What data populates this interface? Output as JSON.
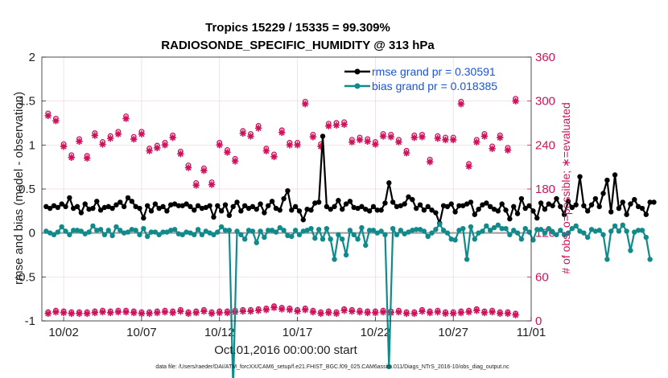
{
  "chart_data": {
    "type": "line",
    "title": "Tropics 15229 / 15335 = 99.309%",
    "subtitle": "RADIOSONDE_SPECIFIC_HUMIDITY @ 313 hPa",
    "xlabel": "Oct.01,2016 00:00:00 start",
    "ylabel": "rmse and bias (model - observation)",
    "y2label": "# of obs: o=possible; ∗=evaluated",
    "ylim": [
      -1,
      2
    ],
    "y2lim": [
      0,
      360
    ],
    "xlim": [
      0.6,
      32.0
    ],
    "yticks": [
      "-1",
      "-0.5",
      "0",
      "0.5",
      "1",
      "1.5",
      "2"
    ],
    "y2ticks": [
      "0",
      "60",
      "120",
      "180",
      "240",
      "300",
      "360"
    ],
    "xticks": [
      {
        "label": "10/02",
        "x": 2
      },
      {
        "label": "10/07",
        "x": 7
      },
      {
        "label": "10/12",
        "x": 12
      },
      {
        "label": "10/17",
        "x": 17
      },
      {
        "label": "10/22",
        "x": 22
      },
      {
        "label": "10/27",
        "x": 27
      },
      {
        "label": "11/01",
        "x": 32
      }
    ],
    "x_start": 0.875,
    "x_step": 0.25,
    "series": [
      {
        "name": "rmse grand pr = 0.30591",
        "color": "#000000",
        "axis": "left",
        "values": [
          0.3,
          0.28,
          0.31,
          0.29,
          0.33,
          0.3,
          0.4,
          0.28,
          0.3,
          0.23,
          0.33,
          0.27,
          0.28,
          0.36,
          0.26,
          0.29,
          0.3,
          0.28,
          0.32,
          0.35,
          0.3,
          0.4,
          0.36,
          0.3,
          0.28,
          0.17,
          0.31,
          0.25,
          0.33,
          0.28,
          0.3,
          0.25,
          0.32,
          0.33,
          0.31,
          0.31,
          0.33,
          0.3,
          0.26,
          0.31,
          0.28,
          0.29,
          0.31,
          0.18,
          0.31,
          0.25,
          0.32,
          0.2,
          0.3,
          0.35,
          0.25,
          0.31,
          0.28,
          0.3,
          0.27,
          0.33,
          0.23,
          0.31,
          0.36,
          0.28,
          0.26,
          0.39,
          0.48,
          0.26,
          0.3,
          0.25,
          0.15,
          0.27,
          0.26,
          0.34,
          0.35,
          1.1,
          0.3,
          0.27,
          0.3,
          0.37,
          0.27,
          0.33,
          0.36,
          0.29,
          0.28,
          0.3,
          0.27,
          0.25,
          0.3,
          0.26,
          0.26,
          0.34,
          0.57,
          0.35,
          0.3,
          0.31,
          0.33,
          0.41,
          0.38,
          0.28,
          0.32,
          0.26,
          0.3,
          0.26,
          0.23,
          0.11,
          0.31,
          0.3,
          0.33,
          0.24,
          0.31,
          0.31,
          0.33,
          0.35,
          0.21,
          0.27,
          0.32,
          0.34,
          0.3,
          0.27,
          0.25,
          0.33,
          0.26,
          0.16,
          0.3,
          0.22,
          0.39,
          0.28,
          0.31,
          0.25,
          0.17,
          0.34,
          0.27,
          0.33,
          0.31,
          0.39,
          0.3,
          0.21,
          0.36,
          0.29,
          0.32,
          0.64,
          0.31,
          0.25,
          0.32,
          0.39,
          0.3,
          0.45,
          0.6,
          0.24,
          0.66,
          0.28,
          0.35,
          0.21,
          0.33,
          0.38,
          0.3,
          0.28,
          0.21,
          0.35,
          0.35
        ]
      },
      {
        "name": "bias grand pr = 0.018385",
        "color": "#108a8a",
        "axis": "left",
        "values": [
          0.02,
          0.0,
          -0.02,
          0.01,
          0.07,
          0.02,
          -0.02,
          0.03,
          0.03,
          0.02,
          -0.01,
          0.01,
          0.08,
          0.03,
          0.04,
          -0.02,
          0.03,
          -0.03,
          0.07,
          0.03,
          0.0,
          0.01,
          0.04,
          0.03,
          -0.02,
          0.05,
          -0.04,
          0.01,
          0.01,
          -0.02,
          0.01,
          0.01,
          0.03,
          0.04,
          -0.01,
          -0.02,
          0.01,
          0.0,
          -0.02,
          0.04,
          -0.02,
          0.02,
          0.0,
          -0.02,
          0.01,
          0.07,
          0.03,
          0.03,
          -1.78,
          0.02,
          -0.02,
          -0.07,
          0.03,
          0.02,
          -0.11,
          0.02,
          -0.05,
          0.03,
          0.03,
          0.01,
          0.06,
          0.03,
          -0.03,
          -0.04,
          0.03,
          -0.02,
          0.02,
          0.03,
          0.05,
          -0.06,
          0.04,
          -0.07,
          0.05,
          -0.07,
          -0.3,
          -0.02,
          -0.07,
          -0.25,
          0.03,
          -0.02,
          -0.07,
          0.06,
          -0.14,
          0.03,
          0.03,
          0.0,
          0.02,
          -0.02,
          -1.52,
          0.05,
          -0.02,
          0.03,
          -0.01,
          0.01,
          0.03,
          0.04,
          0.04,
          0.02,
          -0.04,
          0.0,
          0.04,
          0.1,
          0.03,
          0.0,
          -0.07,
          -0.08,
          0.03,
          0.05,
          -0.3,
          0.07,
          -0.07,
          0.0,
          0.02,
          0.08,
          0.03,
          0.06,
          0.09,
          0.05,
          0.05,
          -0.02,
          0.03,
          0.0,
          -0.07,
          0.05,
          0.01,
          -0.08,
          0.04,
          0.04,
          0.0,
          0.05,
          0.01,
          -0.02,
          0.03,
          -0.02,
          0.0,
          0.05,
          0.08,
          0.02,
          0.0,
          -0.05,
          0.04,
          0.02,
          0.03,
          -0.02,
          -0.3,
          0.02,
          0.08,
          0.02,
          0.09,
          0.02,
          -0.2,
          0.01,
          0.03,
          0.03,
          -0.05,
          -0.3
        ]
      }
    ],
    "obs_counts": {
      "axis": "right",
      "color": "#d0105a",
      "x_start": 1.0,
      "x_step": 0.5,
      "possible": [
        10,
        12,
        11,
        10,
        10,
        10,
        11,
        12,
        11,
        12,
        12,
        11,
        10,
        10,
        11,
        12,
        11,
        13,
        10,
        11,
        13,
        10,
        11,
        11,
        12,
        13,
        13,
        14,
        15,
        18,
        16,
        15,
        13,
        15,
        12,
        10,
        11,
        10,
        14,
        13,
        12,
        11,
        11,
        12,
        11,
        12,
        10,
        10,
        13,
        11,
        12,
        10,
        10,
        11,
        12,
        14,
        11,
        12,
        10,
        10,
        8
      ],
      "evaluated": [
        280,
        273,
        238,
        223,
        245,
        222,
        253,
        241,
        249,
        255,
        276,
        248,
        255,
        232,
        236,
        240,
        250,
        228,
        209,
        185,
        205,
        186,
        240,
        230,
        218,
        256,
        252,
        263,
        232,
        224,
        257,
        240,
        240,
        296,
        251,
        238,
        266,
        267,
        268,
        244,
        247,
        245,
        241,
        252,
        251,
        244,
        229,
        250,
        251,
        217,
        249,
        247,
        247,
        296,
        211,
        244,
        252,
        235,
        250,
        233,
        300
      ],
      "possible_extra": [
        255,
        232,
        232,
        208,
        256,
        245,
        298,
        256,
        258,
        249,
        249,
        228,
        208,
        234,
        299,
        301
      ]
    }
  }
}
